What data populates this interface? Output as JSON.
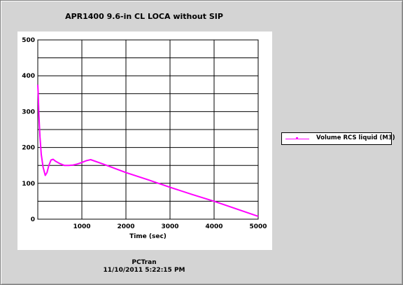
{
  "window": {
    "title": "APR1400 9.6-in CL LOCA without SIP"
  },
  "footer": {
    "source": "PCTran",
    "datetime": "11/10/2011 5:22:15 PM"
  },
  "colors": {
    "background": "#d4d4d4",
    "plot_background": "#ffffff",
    "series": "#ff00ff",
    "grid": "#000000"
  },
  "chart_data": {
    "type": "line",
    "title": "APR1400 9.6-in CL LOCA without SIP",
    "xlabel": "Time (sec)",
    "ylabel": "",
    "xlim": [
      0,
      5000
    ],
    "ylim": [
      0,
      500
    ],
    "x_ticks": [
      1000,
      2000,
      3000,
      4000,
      5000
    ],
    "x_tick_labels": [
      "1000",
      "2000",
      "3000",
      "4000",
      "5000"
    ],
    "y_ticks": [
      0,
      100,
      200,
      300,
      400,
      500
    ],
    "y_tick_labels": [
      "0",
      "100",
      "200",
      "300",
      "400",
      "500"
    ],
    "x_gridlines": [
      0,
      1000,
      2000,
      3000,
      4000,
      5000
    ],
    "y_gridlines": [
      0,
      50,
      100,
      150,
      200,
      250,
      300,
      350,
      400,
      450,
      500
    ],
    "grid": true,
    "legend_position": "right",
    "series": [
      {
        "name": "Volume RCS liquid (M3)",
        "color": "#ff00ff",
        "x": [
          0,
          10,
          25,
          50,
          80,
          120,
          170,
          210,
          250,
          300,
          350,
          400,
          500,
          600,
          700,
          800,
          900,
          1000,
          1100,
          1200,
          1500,
          2000,
          2500,
          3000,
          3500,
          4000,
          4500,
          5000
        ],
        "y": [
          375,
          350,
          290,
          230,
          180,
          145,
          122,
          130,
          150,
          165,
          167,
          162,
          155,
          150,
          150,
          151,
          154,
          158,
          163,
          166,
          153,
          130,
          110,
          89,
          69,
          50,
          29,
          8
        ]
      }
    ]
  }
}
